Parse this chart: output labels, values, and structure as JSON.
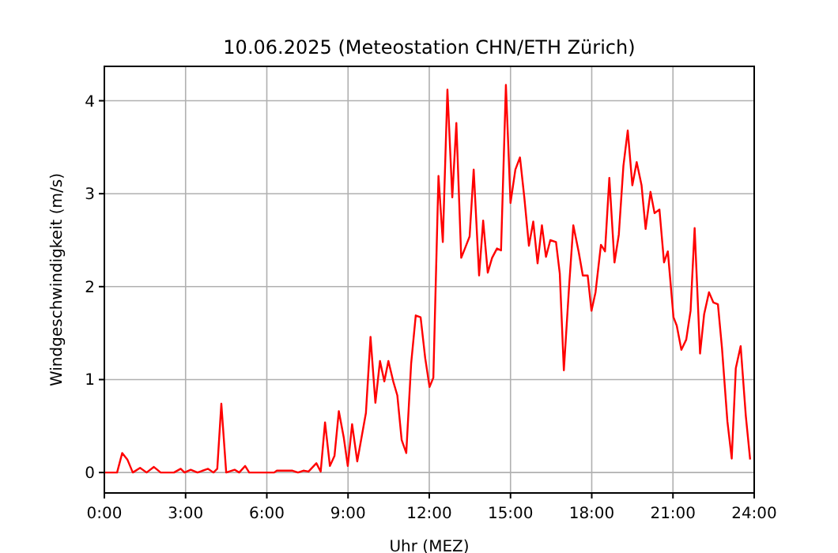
{
  "chart_data": {
    "type": "line",
    "title": "10.06.2025  (Meteostation CHN/ETH Zürich)",
    "xlabel": "Uhr (MEZ)",
    "ylabel": "Windgeschwindigkeit (m/s)",
    "xlim": [
      0,
      24
    ],
    "ylim": [
      -0.22,
      4.37
    ],
    "xticks": [
      {
        "value": 0,
        "label": "0:00"
      },
      {
        "value": 3,
        "label": "3:00"
      },
      {
        "value": 6,
        "label": "6:00"
      },
      {
        "value": 9,
        "label": "9:00"
      },
      {
        "value": 12,
        "label": "12:00"
      },
      {
        "value": 15,
        "label": "15:00"
      },
      {
        "value": 18,
        "label": "18:00"
      },
      {
        "value": 21,
        "label": "21:00"
      },
      {
        "value": 24,
        "label": "24:00"
      }
    ],
    "yticks": [
      0,
      1,
      2,
      3,
      4
    ],
    "grid": true,
    "series": [
      {
        "color": "#ff0000",
        "x": [
          0,
          0.47,
          0.66,
          0.85,
          1.05,
          1.32,
          1.56,
          1.83,
          2.08,
          2.57,
          2.82,
          2.96,
          3.19,
          3.44,
          3.83,
          4.03,
          4.17,
          4.32,
          4.5,
          4.81,
          4.98,
          5.2,
          5.35,
          6.27,
          6.37,
          6.95,
          7.15,
          7.35,
          7.54,
          7.83,
          7.99,
          8.15,
          8.33,
          8.5,
          8.66,
          8.84,
          8.99,
          9.15,
          9.34,
          9.66,
          9.83,
          10.01,
          10.18,
          10.34,
          10.49,
          10.67,
          10.82,
          10.98,
          11.15,
          11.33,
          11.5,
          11.68,
          11.85,
          12.01,
          12.15,
          12.34,
          12.5,
          12.67,
          12.85,
          13.0,
          13.18,
          13.33,
          13.49,
          13.64,
          13.84,
          13.99,
          14.16,
          14.32,
          14.5,
          14.65,
          14.83,
          15.0,
          15.18,
          15.35,
          15.51,
          15.68,
          15.84,
          16.0,
          16.16,
          16.31,
          16.47,
          16.68,
          16.82,
          16.97,
          17.17,
          17.32,
          17.52,
          17.67,
          17.85,
          17.99,
          18.14,
          18.34,
          18.49,
          18.65,
          18.84,
          19.0,
          19.17,
          19.33,
          19.5,
          19.66,
          19.84,
          19.99,
          20.17,
          20.32,
          20.5,
          20.67,
          20.81,
          21.02,
          21.14,
          21.31,
          21.49,
          21.65,
          21.8,
          22.0,
          22.15,
          22.33,
          22.49,
          22.66,
          22.81,
          23.01,
          23.17,
          23.32,
          23.5,
          23.69,
          23.85
        ],
        "values": [
          0,
          0,
          0.21,
          0.14,
          0,
          0.05,
          0,
          0.06,
          0,
          0,
          0.04,
          0,
          0.03,
          0,
          0.04,
          0,
          0.04,
          0.74,
          0,
          0.03,
          0,
          0.07,
          0,
          0,
          0.02,
          0.02,
          0,
          0.02,
          0.01,
          0.1,
          0.01,
          0.54,
          0.07,
          0.18,
          0.66,
          0.38,
          0.07,
          0.52,
          0.12,
          0.64,
          1.46,
          0.75,
          1.2,
          0.98,
          1.2,
          0.98,
          0.83,
          0.35,
          0.21,
          1.17,
          1.69,
          1.67,
          1.23,
          0.92,
          1.02,
          3.19,
          2.48,
          4.12,
          2.96,
          3.76,
          2.31,
          2.42,
          2.54,
          3.26,
          2.12,
          2.71,
          2.15,
          2.31,
          2.41,
          2.39,
          4.17,
          2.9,
          3.26,
          3.39,
          2.96,
          2.44,
          2.7,
          2.25,
          2.66,
          2.32,
          2.5,
          2.48,
          2.14,
          1.1,
          2.03,
          2.66,
          2.37,
          2.12,
          2.12,
          1.74,
          1.94,
          2.45,
          2.38,
          3.17,
          2.26,
          2.56,
          3.3,
          3.68,
          3.09,
          3.34,
          3.09,
          2.62,
          3.02,
          2.79,
          2.83,
          2.26,
          2.38,
          1.67,
          1.58,
          1.32,
          1.43,
          1.74,
          2.63,
          1.28,
          1.7,
          1.94,
          1.83,
          1.81,
          1.34,
          0.55,
          0.15,
          1.12,
          1.36,
          0.61,
          0.14
        ]
      }
    ]
  }
}
